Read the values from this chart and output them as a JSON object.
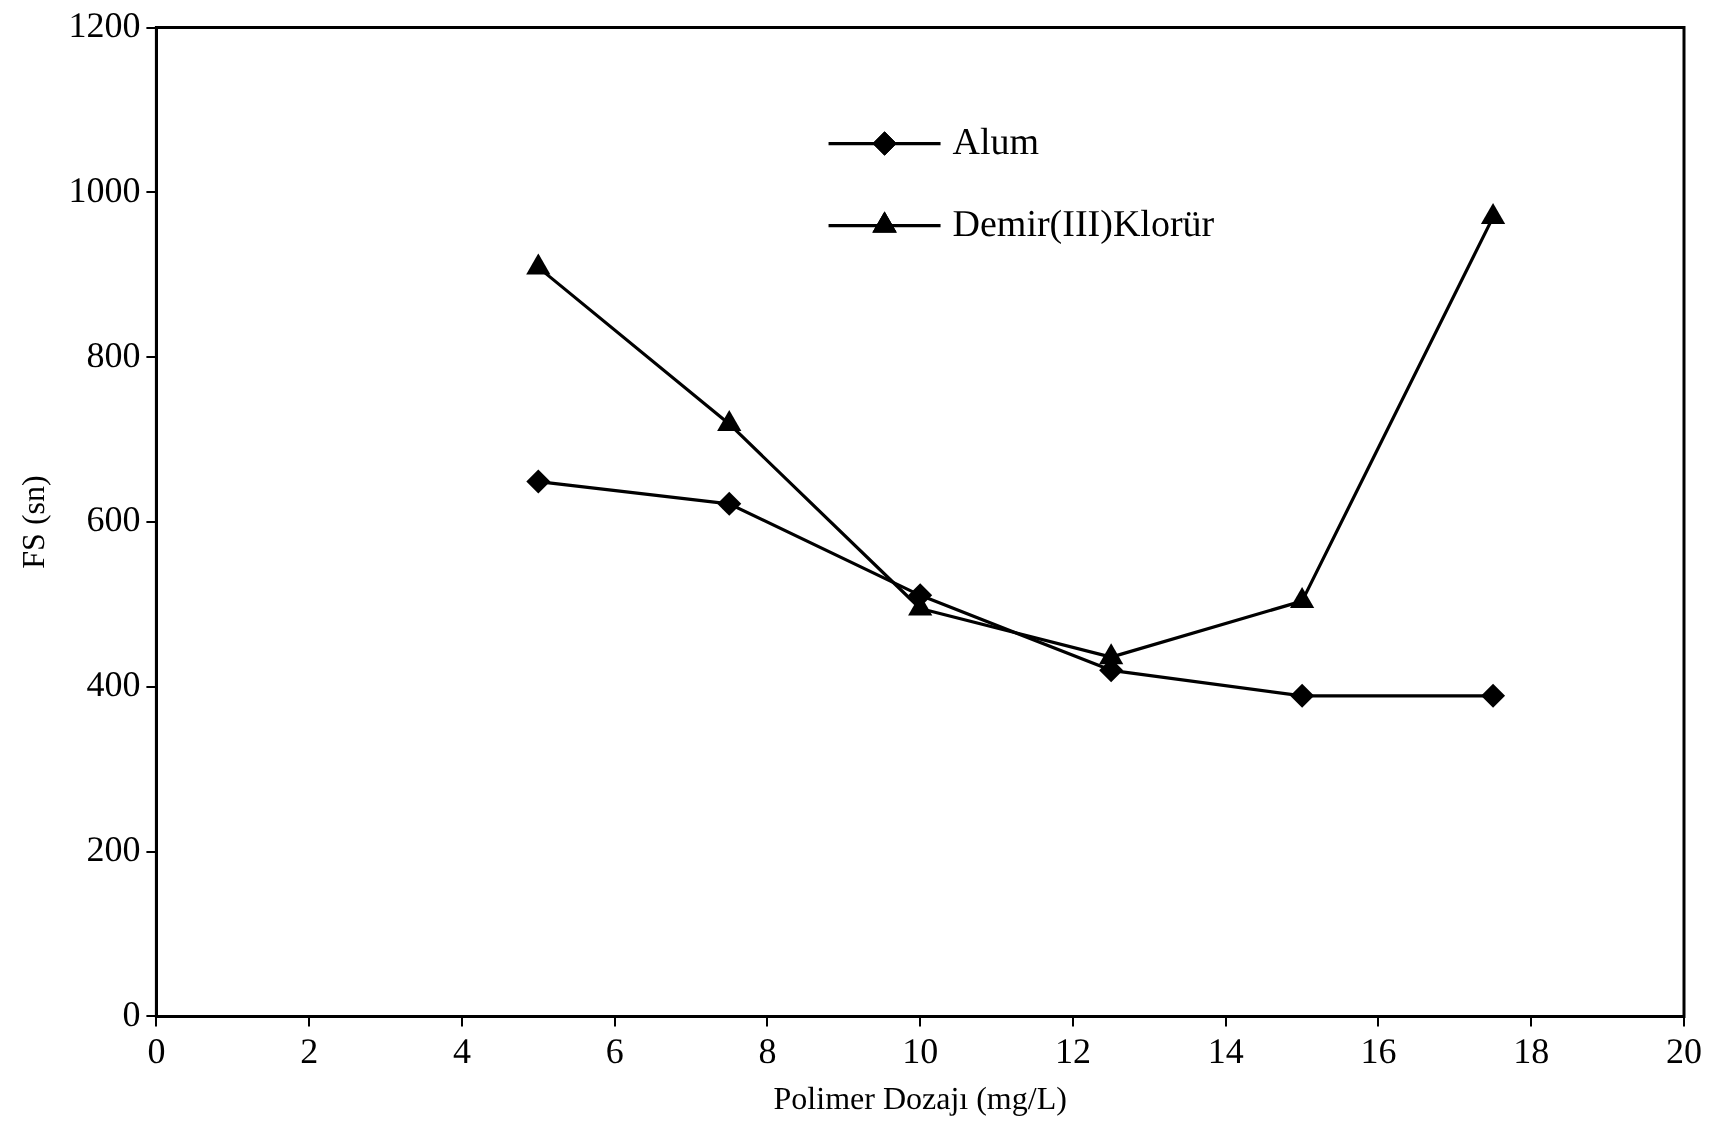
{
  "chart_data": {
    "type": "line",
    "xlabel": "Polimer Dozajı (mg/L)",
    "ylabel": "FS (sn)",
    "x": [
      5,
      7.5,
      10,
      12.5,
      15,
      17.5
    ],
    "series": [
      {
        "name": "Alum",
        "color": "#000000",
        "marker": "diamond",
        "values": [
          649,
          622,
          511,
          420,
          389,
          389
        ]
      },
      {
        "name": "Demir(III)Klorür",
        "color": "#000000",
        "marker": "triangle",
        "values": [
          909,
          719,
          495,
          436,
          504,
          970
        ]
      }
    ],
    "xlim": [
      0,
      20
    ],
    "xticks": [
      0,
      2,
      4,
      6,
      8,
      10,
      12,
      14,
      16,
      18,
      20
    ],
    "ylim": [
      0,
      1200
    ],
    "yticks": [
      0,
      200,
      400,
      600,
      800,
      1000,
      1200
    ],
    "grid": false,
    "legend": "top",
    "line_style": "solid"
  }
}
